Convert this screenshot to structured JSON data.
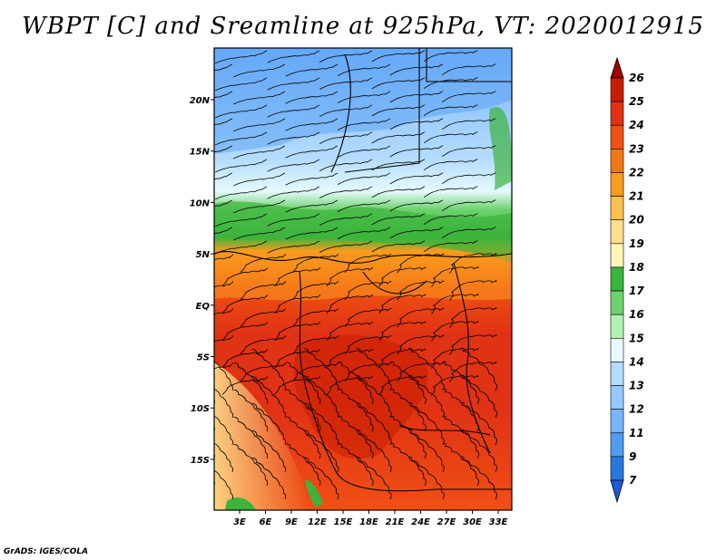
{
  "title": "WBPT [C] and Sreamline at 925hPa, VT: 2020012915",
  "credit": "GrADS: IGES/COLA",
  "map": {
    "lon_ticks": [
      "3E",
      "6E",
      "9E",
      "12E",
      "15E",
      "18E",
      "21E",
      "24E",
      "27E",
      "30E",
      "33E"
    ],
    "lat_ticks": [
      "20N",
      "15N",
      "10N",
      "5N",
      "EQ",
      "5S",
      "10S",
      "15S"
    ]
  },
  "colorbar": {
    "levels": [
      "26",
      "25",
      "24",
      "23",
      "22",
      "21",
      "20",
      "19",
      "18",
      "17",
      "16",
      "15",
      "14",
      "13",
      "12",
      "11",
      "9",
      "7"
    ],
    "colors": [
      "#a00000",
      "#c81e00",
      "#e03214",
      "#f05014",
      "#f07814",
      "#fa9c1e",
      "#fac050",
      "#fde08c",
      "#fff5b4",
      "#3cb43c",
      "#6ed26e",
      "#b4f0b4",
      "#e6faff",
      "#b4dcff",
      "#96c8ff",
      "#78b4ff",
      "#509cf0",
      "#2878dc",
      "#1e5ad2"
    ]
  }
}
